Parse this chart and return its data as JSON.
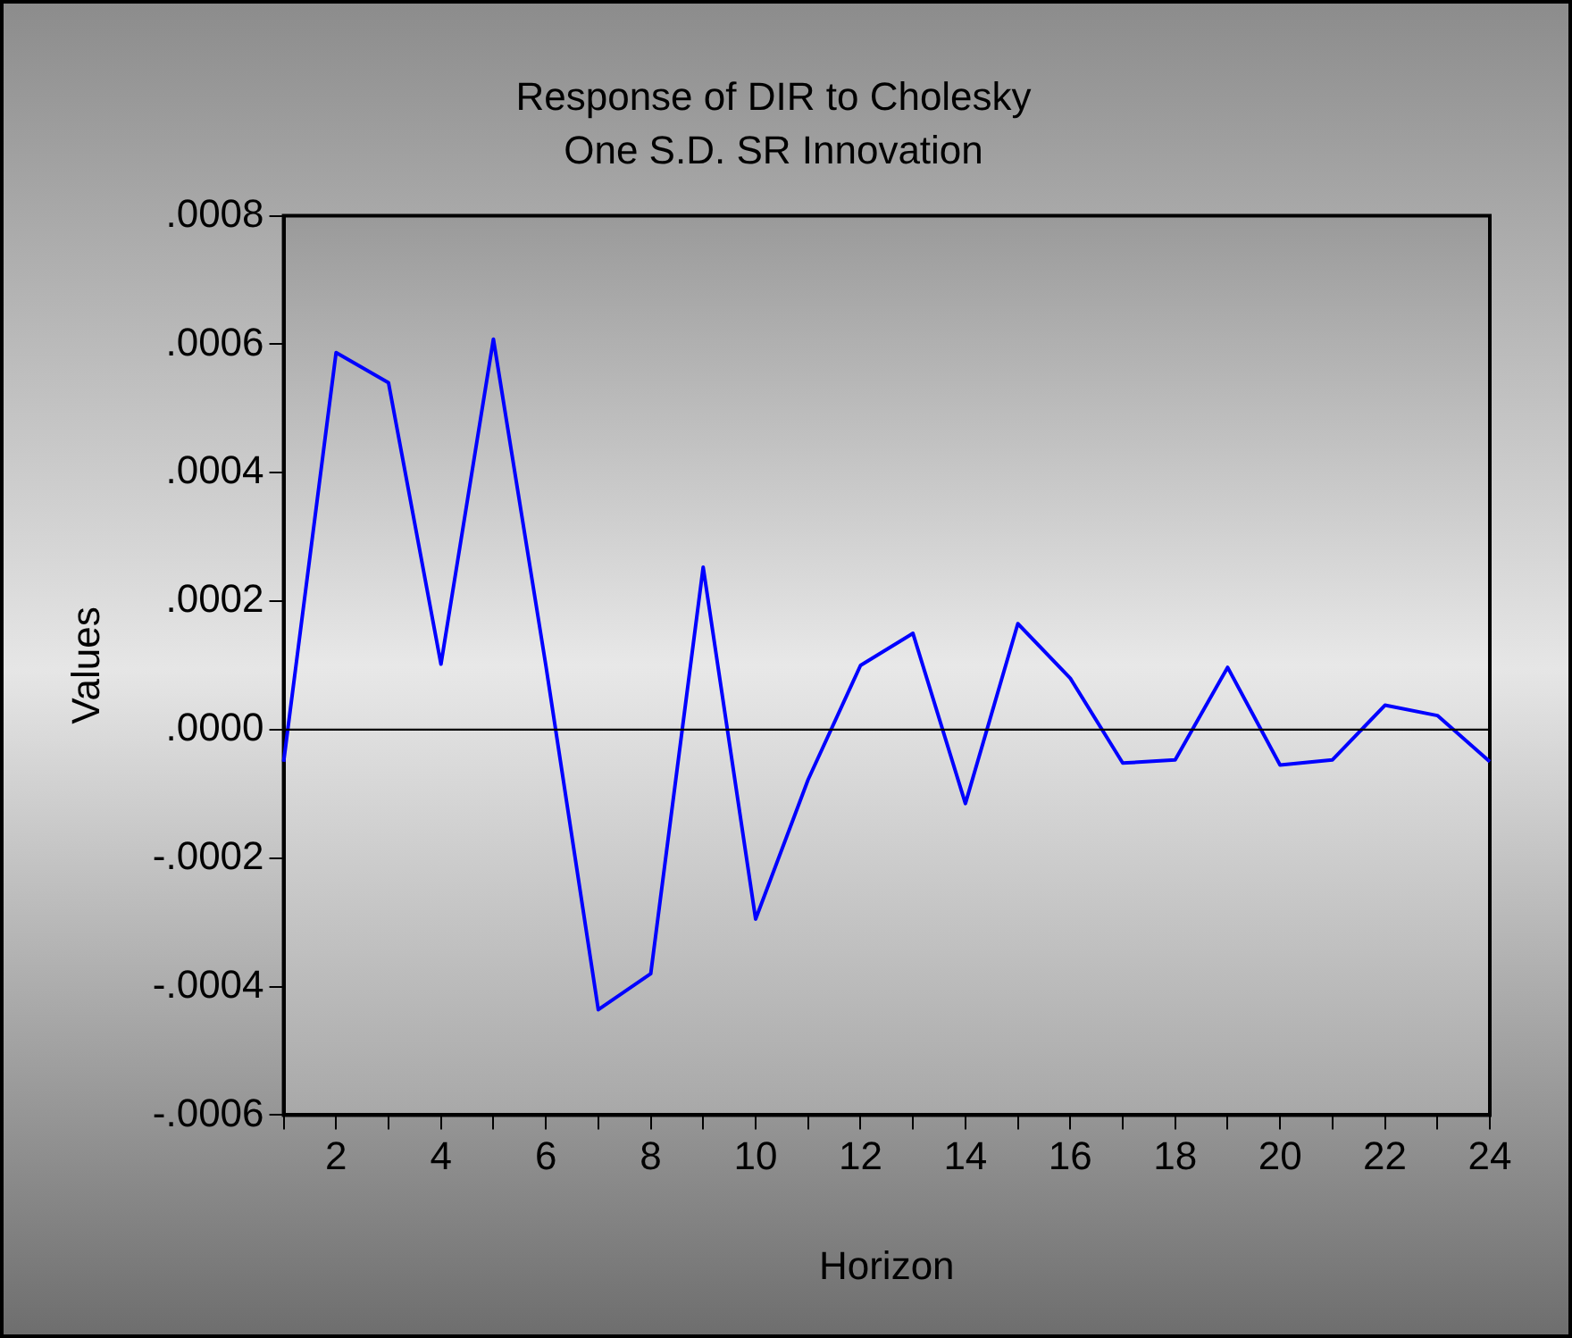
{
  "chart_data": {
    "type": "line",
    "title": "Response of DIR to Cholesky",
    "subtitle": "One S.D. SR Innovation",
    "xlabel": "Horizon",
    "ylabel": "Values",
    "x": [
      1,
      2,
      3,
      4,
      5,
      6,
      7,
      8,
      9,
      10,
      11,
      12,
      13,
      14,
      15,
      16,
      17,
      18,
      19,
      20,
      21,
      22,
      23,
      24
    ],
    "series": [
      {
        "color": "#0000ff",
        "values": [
          -5e-05,
          0.000587,
          0.00054,
          0.000102,
          0.000608,
          0.0001,
          -0.000436,
          -0.00038,
          0.000253,
          -0.000295,
          -7.8e-05,
          0.0001,
          0.00015,
          -0.000115,
          0.000165,
          8e-05,
          -5.2e-05,
          -4.7e-05,
          9.7e-05,
          -5.5e-05,
          -4.7e-05,
          3.8e-05,
          2.2e-05,
          -5e-05
        ]
      }
    ],
    "xlim": [
      1,
      24
    ],
    "xticks": [
      {
        "value": 1,
        "label": null
      },
      2,
      {
        "value": 3,
        "label": null
      },
      4,
      {
        "value": 5,
        "label": null
      },
      6,
      {
        "value": 7,
        "label": null
      },
      8,
      {
        "value": 9,
        "label": null
      },
      10,
      {
        "value": 11,
        "label": null
      },
      12,
      {
        "value": 13,
        "label": null
      },
      14,
      {
        "value": 15,
        "label": null
      },
      16,
      {
        "value": 17,
        "label": null
      },
      18,
      {
        "value": 19,
        "label": null
      },
      20,
      {
        "value": 21,
        "label": null
      },
      22,
      {
        "value": 23,
        "label": null
      },
      24
    ],
    "ylim": [
      -0.0006,
      0.0008
    ],
    "yticks": [
      {
        "value": -0.0006,
        "label": "-.0006"
      },
      {
        "value": -0.0004,
        "label": "-.0004"
      },
      {
        "value": -0.0002,
        "label": "-.0002"
      },
      {
        "value": 0,
        "label": ".0000"
      },
      {
        "value": 0.0002,
        "label": ".0002"
      },
      {
        "value": 0.0004,
        "label": ".0004"
      },
      {
        "value": 0.0006,
        "label": ".0006"
      },
      {
        "value": 0.0008,
        "label": ".0008"
      }
    ],
    "ref_lines": [
      {
        "axis": "y",
        "value": 0,
        "color": "#000000"
      }
    ],
    "grid": false,
    "legend": false,
    "marker": "none",
    "line_style": "solid"
  }
}
